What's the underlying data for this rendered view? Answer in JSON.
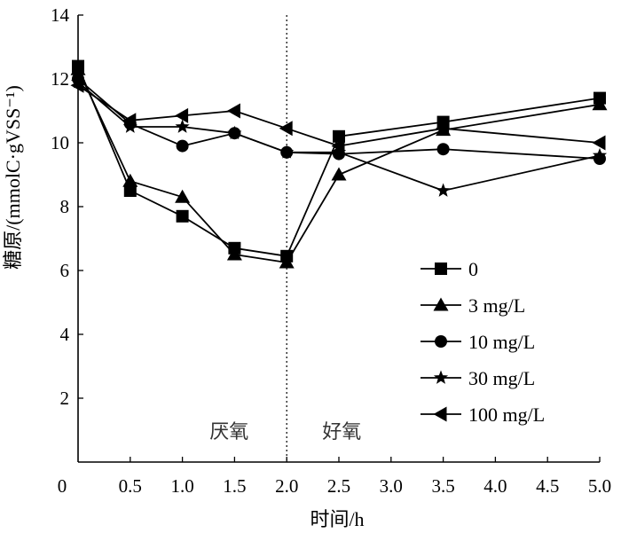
{
  "chart_data": {
    "type": "line",
    "xlabel": "时间/h",
    "ylabel": "糖原/(mmolC·gVSS⁻¹)",
    "xlim": [
      0,
      5.0
    ],
    "ylim": [
      0,
      14
    ],
    "x_ticks": [
      "0",
      "0.5",
      "1.0",
      "1.5",
      "2.0",
      "2.5",
      "3.0",
      "3.5",
      "4.0",
      "4.5",
      "5.0"
    ],
    "y_ticks": [
      "2",
      "4",
      "6",
      "8",
      "10",
      "12",
      "14"
    ],
    "grid": false,
    "legend_position": "bottom-right",
    "divider_x": 2.0,
    "phase_labels": {
      "left": "厌氧",
      "right": "好氧"
    },
    "series": [
      {
        "name": "0",
        "marker": "square",
        "points": [
          [
            0.0,
            12.4
          ],
          [
            0.5,
            8.5
          ],
          [
            1.0,
            7.7
          ],
          [
            1.5,
            6.7
          ],
          [
            2.0,
            6.45
          ],
          [
            2.5,
            10.2
          ],
          [
            3.5,
            10.65
          ],
          [
            5.0,
            11.4
          ]
        ]
      },
      {
        "name": "3 mg/L",
        "marker": "triangle-up",
        "points": [
          [
            0.0,
            12.3
          ],
          [
            0.5,
            8.8
          ],
          [
            1.0,
            8.3
          ],
          [
            1.5,
            6.5
          ],
          [
            2.0,
            6.25
          ],
          [
            2.5,
            9.0
          ],
          [
            3.5,
            10.4
          ],
          [
            5.0,
            11.2
          ]
        ]
      },
      {
        "name": "10 mg/L",
        "marker": "circle",
        "points": [
          [
            0.0,
            12.0
          ],
          [
            0.5,
            10.6
          ],
          [
            1.0,
            9.9
          ],
          [
            1.5,
            10.3
          ],
          [
            2.0,
            9.7
          ],
          [
            2.5,
            9.65
          ],
          [
            3.5,
            9.8
          ],
          [
            5.0,
            9.5
          ]
        ]
      },
      {
        "name": "30 mg/L",
        "marker": "star",
        "points": [
          [
            0.0,
            11.9
          ],
          [
            0.5,
            10.5
          ],
          [
            1.0,
            10.5
          ],
          [
            1.5,
            10.3
          ],
          [
            2.0,
            9.7
          ],
          [
            2.5,
            9.7
          ],
          [
            3.5,
            8.5
          ],
          [
            5.0,
            9.6
          ]
        ]
      },
      {
        "name": "100 mg/L",
        "marker": "triangle-left",
        "points": [
          [
            0.0,
            11.8
          ],
          [
            0.5,
            10.7
          ],
          [
            1.0,
            10.85
          ],
          [
            1.5,
            11.0
          ],
          [
            2.0,
            10.45
          ],
          [
            2.5,
            9.9
          ],
          [
            3.5,
            10.45
          ],
          [
            5.0,
            10.0
          ]
        ]
      }
    ]
  }
}
